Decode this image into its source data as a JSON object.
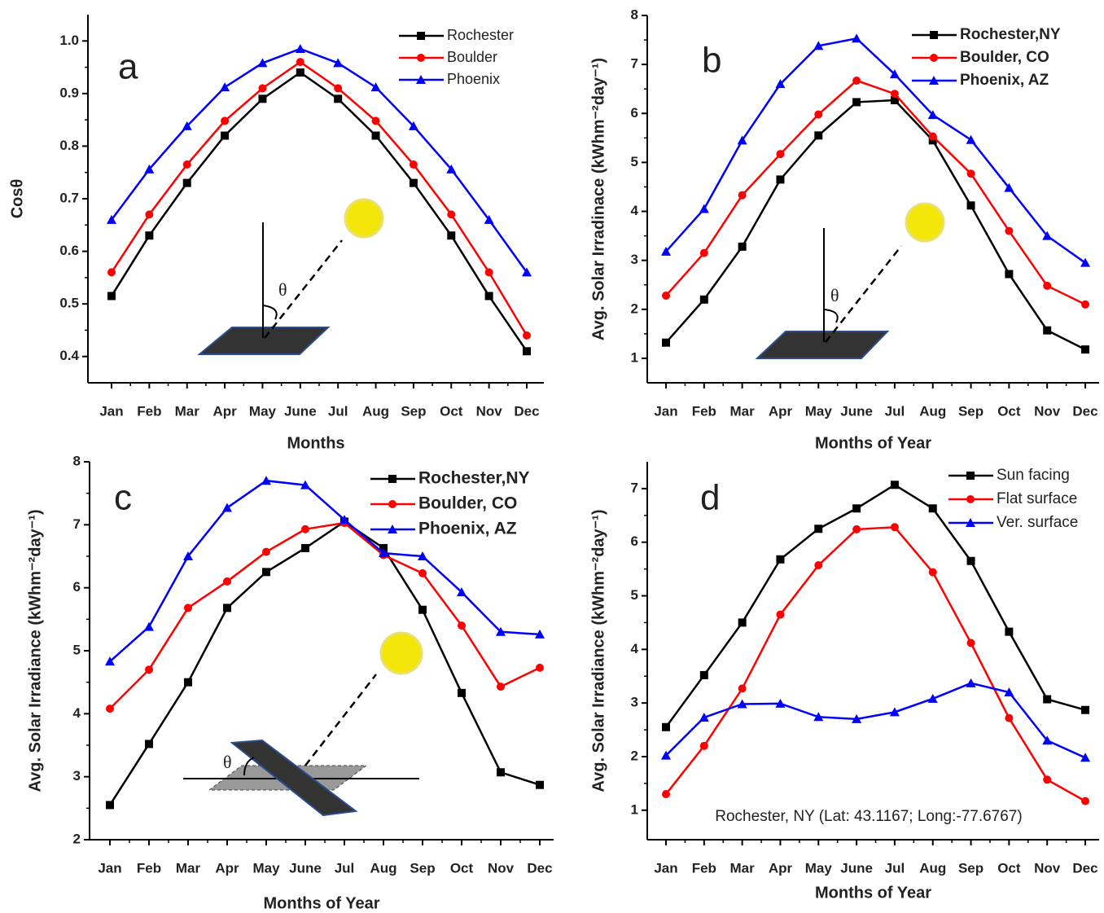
{
  "chart_data": [
    {
      "type": "line",
      "panel_label": "a",
      "diagram_label": "θ",
      "y_label": "Cosθ",
      "x_label": "Months",
      "categories": [
        "Jan",
        "Feb",
        "Mar",
        "Apr",
        "May",
        "June",
        "Jul",
        "Aug",
        "Sep",
        "Oct",
        "Nov",
        "Dec"
      ],
      "ylim": [
        0.35,
        1.05
      ],
      "yticks": [
        0.4,
        0.5,
        0.6,
        0.7,
        0.8,
        0.9,
        {
          "value": 1,
          "label": "1.0"
        }
      ],
      "series": [
        {
          "name": "Rochester",
          "color": "#000000",
          "marker": "square",
          "values": [
            0.515,
            0.63,
            0.73,
            0.82,
            0.89,
            0.94,
            0.89,
            0.82,
            0.73,
            0.63,
            0.515,
            0.41
          ]
        },
        {
          "name": "Boulder",
          "color": "#ff0000",
          "marker": "circle",
          "values": [
            0.56,
            0.67,
            0.765,
            0.848,
            0.91,
            0.96,
            0.91,
            0.848,
            0.765,
            0.67,
            0.56,
            0.44
          ]
        },
        {
          "name": "Phoenix",
          "color": "#0000ff",
          "marker": "triangle",
          "values": [
            0.66,
            0.756,
            0.838,
            0.912,
            0.958,
            0.985,
            0.958,
            0.912,
            0.838,
            0.756,
            0.66,
            0.56
          ]
        }
      ]
    },
    {
      "type": "line",
      "panel_label": "b",
      "diagram_label": "θ",
      "y_label": "Avg. Solar Irradinace  (kWhm⁻²day⁻¹)",
      "x_label": "Months of Year",
      "categories": [
        "Jan",
        "Feb",
        "Mar",
        "Apr",
        "May",
        "June",
        "Jul",
        "Aug",
        "Sep",
        "Oct",
        "Nov",
        "Dec"
      ],
      "ylim": [
        0.5,
        8
      ],
      "yticks": [
        1,
        2,
        3,
        4,
        5,
        6,
        7,
        8
      ],
      "series": [
        {
          "name": "Rochester,NY",
          "color": "#000000",
          "marker": "square",
          "values": [
            1.32,
            2.2,
            3.28,
            4.65,
            5.55,
            6.23,
            6.27,
            5.45,
            4.12,
            2.72,
            1.57,
            1.18
          ]
        },
        {
          "name": "Boulder, CO",
          "color": "#ff0000",
          "marker": "circle",
          "values": [
            2.28,
            3.15,
            4.33,
            5.17,
            5.98,
            6.67,
            6.4,
            5.53,
            4.77,
            3.6,
            2.48,
            2.1
          ]
        },
        {
          "name": "Phoenix, AZ",
          "color": "#0000ff",
          "marker": "triangle",
          "values": [
            3.18,
            4.05,
            5.45,
            6.6,
            7.38,
            7.53,
            6.8,
            5.97,
            5.46,
            4.48,
            3.5,
            2.95
          ]
        }
      ]
    },
    {
      "type": "line",
      "panel_label": "c",
      "diagram_label": "θ",
      "y_label": "Avg. Solar Irradiance (kWhm⁻²day⁻¹)",
      "x_label": "Months of Year",
      "categories": [
        "Jan",
        "Feb",
        "Mar",
        "Apr",
        "May",
        "June",
        "Jul",
        "Aug",
        "Sep",
        "Oct",
        "Nov",
        "Dec"
      ],
      "ylim": [
        2,
        8
      ],
      "yticks": [
        2,
        3,
        4,
        5,
        6,
        7,
        8
      ],
      "series": [
        {
          "name": "Rochester,NY",
          "color": "#000000",
          "marker": "square",
          "values": [
            2.55,
            3.52,
            4.5,
            5.68,
            6.25,
            6.63,
            7.05,
            6.63,
            5.65,
            4.33,
            3.07,
            2.87
          ]
        },
        {
          "name": "Boulder, CO",
          "color": "#ff0000",
          "marker": "circle",
          "values": [
            4.08,
            4.7,
            5.68,
            6.1,
            6.57,
            6.93,
            7.03,
            6.52,
            6.23,
            5.4,
            4.43,
            4.73
          ]
        },
        {
          "name": "Phoenix, AZ",
          "color": "#0000ff",
          "marker": "triangle",
          "values": [
            4.83,
            5.38,
            6.5,
            7.27,
            7.7,
            7.63,
            7.08,
            6.55,
            6.5,
            5.93,
            5.3,
            5.26
          ]
        }
      ]
    },
    {
      "type": "line",
      "panel_label": "d",
      "annotation": "Rochester, NY (Lat: 43.1167; Long:-77.6767)",
      "y_label": "Avg. Solar Irradiance (kWhm⁻²day⁻¹)",
      "x_label": "Months of Year",
      "categories": [
        "Jan",
        "Feb",
        "Mar",
        "Apr",
        "May",
        "June",
        "Jul",
        "Aug",
        "Sep",
        "Oct",
        "Nov",
        "Dec"
      ],
      "ylim": [
        0.45,
        7.5
      ],
      "yticks": [
        1,
        2,
        3,
        4,
        5,
        6,
        7
      ],
      "series": [
        {
          "name": "Sun facing",
          "color": "#000000",
          "marker": "square",
          "values": [
            2.55,
            3.52,
            4.5,
            5.68,
            6.25,
            6.63,
            7.07,
            6.63,
            5.65,
            4.33,
            3.07,
            2.87
          ]
        },
        {
          "name": "Flat surface",
          "color": "#ff0000",
          "marker": "circle",
          "values": [
            1.3,
            2.2,
            3.27,
            4.65,
            5.57,
            6.24,
            6.28,
            5.44,
            4.12,
            2.72,
            1.57,
            1.17
          ]
        },
        {
          "name": "Ver. surface",
          "color": "#0000ff",
          "marker": "triangle",
          "values": [
            2.02,
            2.73,
            2.98,
            2.99,
            2.74,
            2.7,
            2.83,
            3.08,
            3.37,
            3.2,
            2.3,
            1.98
          ]
        }
      ]
    }
  ]
}
